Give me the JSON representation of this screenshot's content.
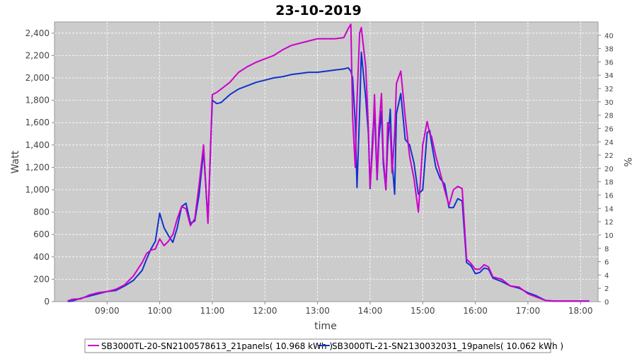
{
  "chart_data": {
    "type": "line",
    "title": "23-10-2019",
    "xlabel": "time",
    "ylabel": "Watt",
    "ylabel_right": "%",
    "x_ticks": [
      "09:00",
      "10:00",
      "11:00",
      "12:00",
      "13:00",
      "14:00",
      "15:00",
      "16:00",
      "17:00",
      "18:00"
    ],
    "x_range": [
      "08:00",
      "18:20"
    ],
    "ylim": [
      0,
      2500
    ],
    "y_ticks": [
      0,
      200,
      400,
      600,
      800,
      1000,
      1200,
      1400,
      1600,
      1800,
      2000,
      2200,
      2400
    ],
    "y_right_lim": [
      0,
      42
    ],
    "y_right_ticks": [
      0,
      2,
      4,
      6,
      8,
      10,
      12,
      14,
      16,
      18,
      20,
      22,
      24,
      26,
      28,
      30,
      32,
      34,
      36,
      38,
      40
    ],
    "grid": true,
    "legend_position": "bottom",
    "plot_background": "#cccccc",
    "series": [
      {
        "name": "SB3000TL-20-SN2100578613_21panels( 10.968 kWh )",
        "color": "#cc00cc",
        "x": [
          "08:15",
          "08:20",
          "08:30",
          "08:40",
          "08:50",
          "09:00",
          "09:10",
          "09:20",
          "09:30",
          "09:40",
          "09:45",
          "09:50",
          "09:55",
          "10:00",
          "10:05",
          "10:10",
          "10:15",
          "10:20",
          "10:25",
          "10:30",
          "10:35",
          "10:40",
          "10:45",
          "10:50",
          "10:55",
          "11:00",
          "11:05",
          "11:10",
          "11:20",
          "11:30",
          "11:40",
          "11:50",
          "12:00",
          "12:10",
          "12:20",
          "12:30",
          "12:40",
          "12:50",
          "13:00",
          "13:10",
          "13:20",
          "13:30",
          "13:35",
          "13:38",
          "13:40",
          "13:43",
          "13:45",
          "13:48",
          "13:50",
          "13:55",
          "13:58",
          "14:00",
          "14:03",
          "14:05",
          "14:08",
          "14:10",
          "14:13",
          "14:15",
          "14:18",
          "14:20",
          "14:23",
          "14:25",
          "14:28",
          "14:30",
          "14:35",
          "14:40",
          "14:45",
          "14:50",
          "14:55",
          "15:00",
          "15:05",
          "15:08",
          "15:10",
          "15:15",
          "15:20",
          "15:25",
          "15:30",
          "15:35",
          "15:40",
          "15:45",
          "15:50",
          "15:55",
          "16:00",
          "16:05",
          "16:10",
          "16:15",
          "16:20",
          "16:30",
          "16:40",
          "16:50",
          "17:00",
          "17:10",
          "17:20",
          "17:30",
          "17:40",
          "17:50",
          "18:00",
          "18:10"
        ],
        "y": [
          5,
          20,
          25,
          60,
          80,
          90,
          110,
          150,
          230,
          350,
          430,
          460,
          470,
          560,
          500,
          540,
          600,
          740,
          850,
          830,
          680,
          740,
          1050,
          1400,
          700,
          1850,
          1870,
          1900,
          1960,
          2050,
          2100,
          2140,
          2170,
          2200,
          2250,
          2290,
          2310,
          2330,
          2350,
          2350,
          2350,
          2360,
          2440,
          2480,
          1650,
          1200,
          1800,
          2400,
          2450,
          2100,
          1550,
          1020,
          1400,
          1850,
          1100,
          1550,
          1860,
          1300,
          1000,
          1600,
          1550,
          1150,
          1500,
          1950,
          2060,
          1650,
          1300,
          1100,
          800,
          1400,
          1610,
          1500,
          1480,
          1300,
          1150,
          1000,
          860,
          1000,
          1030,
          1010,
          380,
          340,
          290,
          290,
          330,
          310,
          220,
          200,
          140,
          130,
          70,
          40,
          10,
          5,
          5,
          5,
          5,
          5
        ]
      },
      {
        "name": "SB3000TL-21-SN2130032031_19panels( 10.062 kWh )",
        "color": "#1133cc",
        "x": [
          "08:15",
          "08:20",
          "08:30",
          "08:40",
          "08:50",
          "09:00",
          "09:10",
          "09:20",
          "09:30",
          "09:40",
          "09:45",
          "09:50",
          "09:55",
          "10:00",
          "10:05",
          "10:10",
          "10:15",
          "10:20",
          "10:25",
          "10:30",
          "10:35",
          "10:40",
          "10:45",
          "10:50",
          "10:55",
          "11:00",
          "11:05",
          "11:10",
          "11:20",
          "11:30",
          "11:40",
          "11:50",
          "12:00",
          "12:10",
          "12:20",
          "12:30",
          "12:40",
          "12:50",
          "13:00",
          "13:10",
          "13:20",
          "13:30",
          "13:35",
          "13:38",
          "13:40",
          "13:43",
          "13:45",
          "13:48",
          "13:50",
          "13:55",
          "13:58",
          "14:00",
          "14:03",
          "14:05",
          "14:08",
          "14:10",
          "14:13",
          "14:15",
          "14:18",
          "14:20",
          "14:23",
          "14:25",
          "14:28",
          "14:30",
          "14:35",
          "14:40",
          "14:45",
          "14:50",
          "14:55",
          "15:00",
          "15:05",
          "15:08",
          "15:10",
          "15:15",
          "15:20",
          "15:25",
          "15:30",
          "15:35",
          "15:40",
          "15:45",
          "15:50",
          "15:55",
          "16:00",
          "16:05",
          "16:10",
          "16:15",
          "16:20",
          "16:30",
          "16:40",
          "16:50",
          "17:00",
          "17:10",
          "17:20",
          "17:30",
          "17:40",
          "17:50",
          "18:00",
          "18:10"
        ],
        "y": [
          2,
          5,
          30,
          50,
          70,
          90,
          100,
          140,
          190,
          280,
          380,
          470,
          540,
          790,
          660,
          590,
          530,
          660,
          850,
          880,
          700,
          720,
          960,
          1350,
          720,
          1800,
          1770,
          1780,
          1850,
          1900,
          1930,
          1960,
          1980,
          2000,
          2010,
          2030,
          2040,
          2050,
          2050,
          2060,
          2070,
          2080,
          2090,
          2060,
          2000,
          1600,
          1020,
          1700,
          2230,
          1820,
          1500,
          1010,
          1500,
          1700,
          1090,
          1450,
          1700,
          1240,
          1000,
          1400,
          1720,
          1260,
          960,
          1680,
          1860,
          1450,
          1400,
          1240,
          960,
          1000,
          1510,
          1530,
          1420,
          1200,
          1100,
          1050,
          840,
          840,
          920,
          900,
          350,
          320,
          250,
          260,
          300,
          290,
          210,
          180,
          140,
          120,
          80,
          50,
          10,
          5,
          5,
          5,
          5,
          5
        ]
      }
    ]
  }
}
